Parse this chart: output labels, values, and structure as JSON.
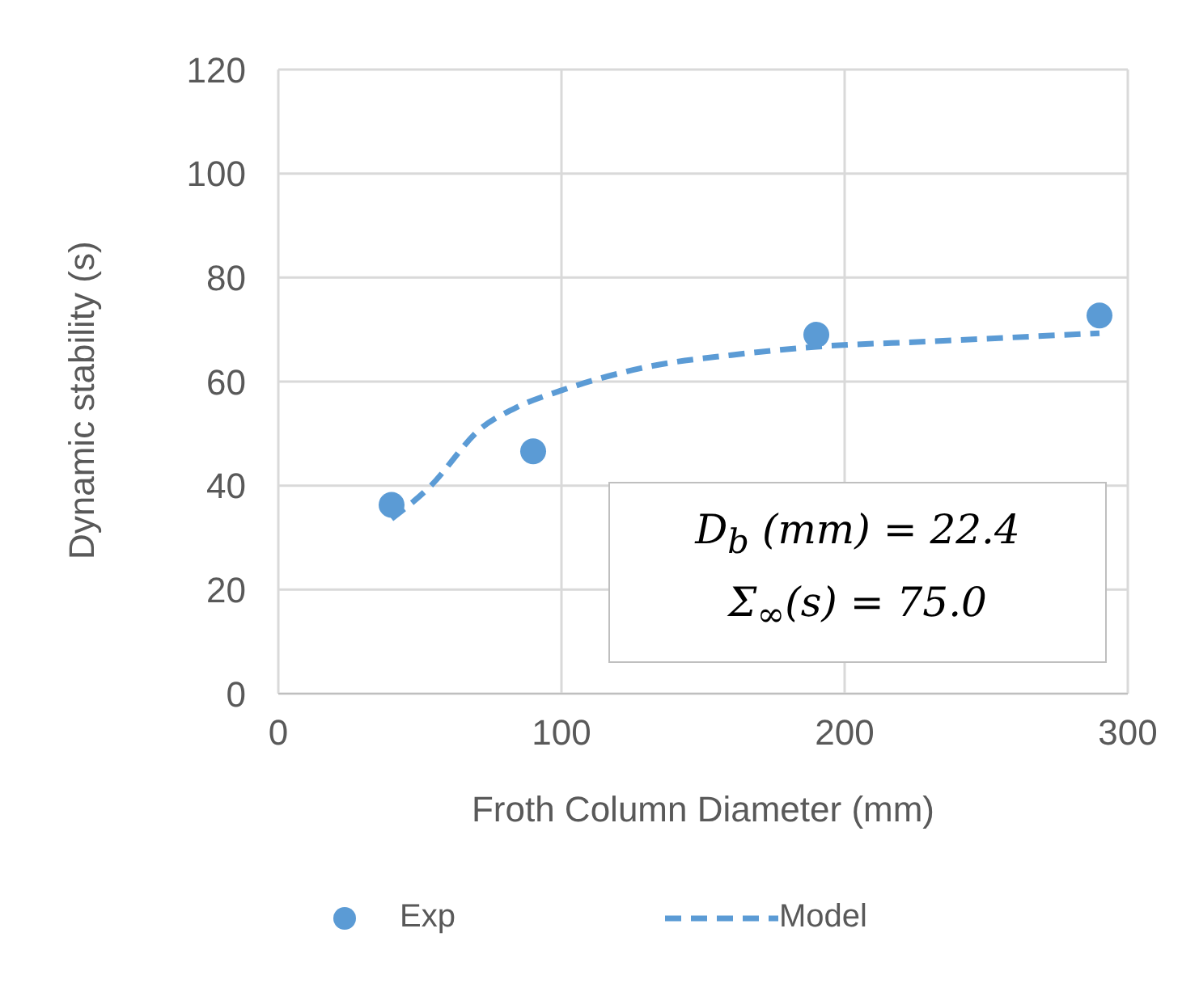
{
  "chart_data": {
    "type": "scatter",
    "xlabel": "Froth Column Diameter (mm)",
    "ylabel": "Dynamic stability (s)",
    "xlim": [
      0,
      300
    ],
    "xticks": [
      0,
      100,
      200,
      300
    ],
    "ylim": [
      0,
      120
    ],
    "yticks": [
      0,
      20,
      40,
      60,
      80,
      100,
      120
    ],
    "grid": true,
    "legend": "bottom",
    "series": [
      {
        "name": "Exp",
        "color": "#5b9bd5",
        "marker": "circle",
        "x": [
          40,
          90,
          190,
          290
        ],
        "values": [
          36.3,
          46.6,
          69.0,
          72.7
        ]
      },
      {
        "name": "Model",
        "type": "line",
        "color": "#5b9bd5",
        "marker": "none",
        "line_style": "dashed",
        "x": [
          40,
          53,
          72,
          84,
          100,
          131,
          160,
          190,
          229,
          290
        ],
        "values": [
          33.6,
          39.5,
          51.2,
          55.0,
          58.3,
          62.9,
          65.1,
          66.7,
          67.7,
          69.3
        ]
      }
    ],
    "annotations": [
      "D$_{b}$ (mm) = 22.4",
      "Σ$_{∞}$(s) = 75.0"
    ]
  }
}
